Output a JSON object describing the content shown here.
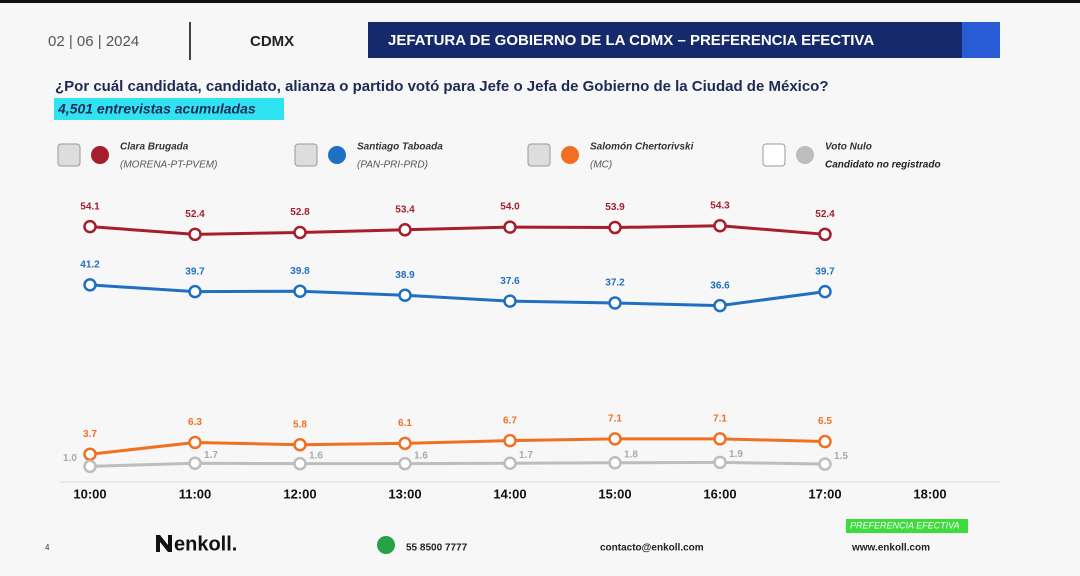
{
  "header": {
    "date": "02 | 06 | 2024",
    "region": "CDMX",
    "banner": "JEFATURA DE GOBIERNO DE LA CDMX – PREFERENCIA EFECTIVA"
  },
  "chart_data": {
    "type": "line",
    "title": "¿Por cuál candidata, candidato, alianza o partido votó para Jefe o Jefa de Gobierno de la Ciudad de México?",
    "subtitle": "4,501 entrevistas acumuladas",
    "categories": [
      "10:00",
      "11:00",
      "12:00",
      "13:00",
      "14:00",
      "15:00",
      "16:00",
      "17:00",
      "18:00"
    ],
    "ylim": [
      -6,
      60
    ],
    "series": [
      {
        "name": "Clara Brugada",
        "party": "(MORENA-PT-PVEM)",
        "color": "#a61e2b",
        "values": [
          54.1,
          52.4,
          52.8,
          53.4,
          54.0,
          53.9,
          54.3,
          52.4,
          null
        ],
        "value_labels": [
          "54.1",
          "52.4",
          "52.8",
          "53.4",
          "54.0",
          "53.9",
          "54.3",
          "52.4",
          null
        ]
      },
      {
        "name": "Santiago Taboada",
        "party": "(PAN-PRI-PRD)",
        "color": "#1f6fc2",
        "values": [
          41.2,
          39.7,
          39.8,
          38.9,
          37.6,
          37.2,
          36.6,
          39.7,
          null
        ],
        "value_labels": [
          "41.2",
          "39.7",
          "39.8",
          "38.9",
          "37.6",
          "37.2",
          "36.6",
          "39.7",
          null
        ]
      },
      {
        "name": "Salomón Chertorivski",
        "party": "(MC)",
        "color": "#f26f21",
        "values": [
          3.7,
          6.3,
          5.8,
          6.1,
          6.7,
          7.1,
          7.1,
          6.5,
          null
        ],
        "value_labels": [
          "3.7",
          "6.3",
          "5.8",
          "6.1",
          "6.7",
          "7.1",
          "7.1",
          "6.5",
          null
        ]
      },
      {
        "name": "Voto Nulo",
        "party": "Candidato no registrado",
        "color": "#bdbdbd",
        "values": [
          1.0,
          1.7,
          1.6,
          1.6,
          1.7,
          1.8,
          1.9,
          1.5,
          null
        ],
        "value_labels": [
          "1.0",
          "1.7",
          "1.6",
          "1.6",
          "1.7",
          "1.8",
          "1.9",
          "1.5",
          null
        ]
      }
    ]
  },
  "footer": {
    "page": "4",
    "brand": "enkoll.",
    "phone": "55 8500 7777",
    "email": "contacto@enkoll.com",
    "web": "www.enkoll.com",
    "tag": "PREFERENCIA EFECTIVA"
  }
}
